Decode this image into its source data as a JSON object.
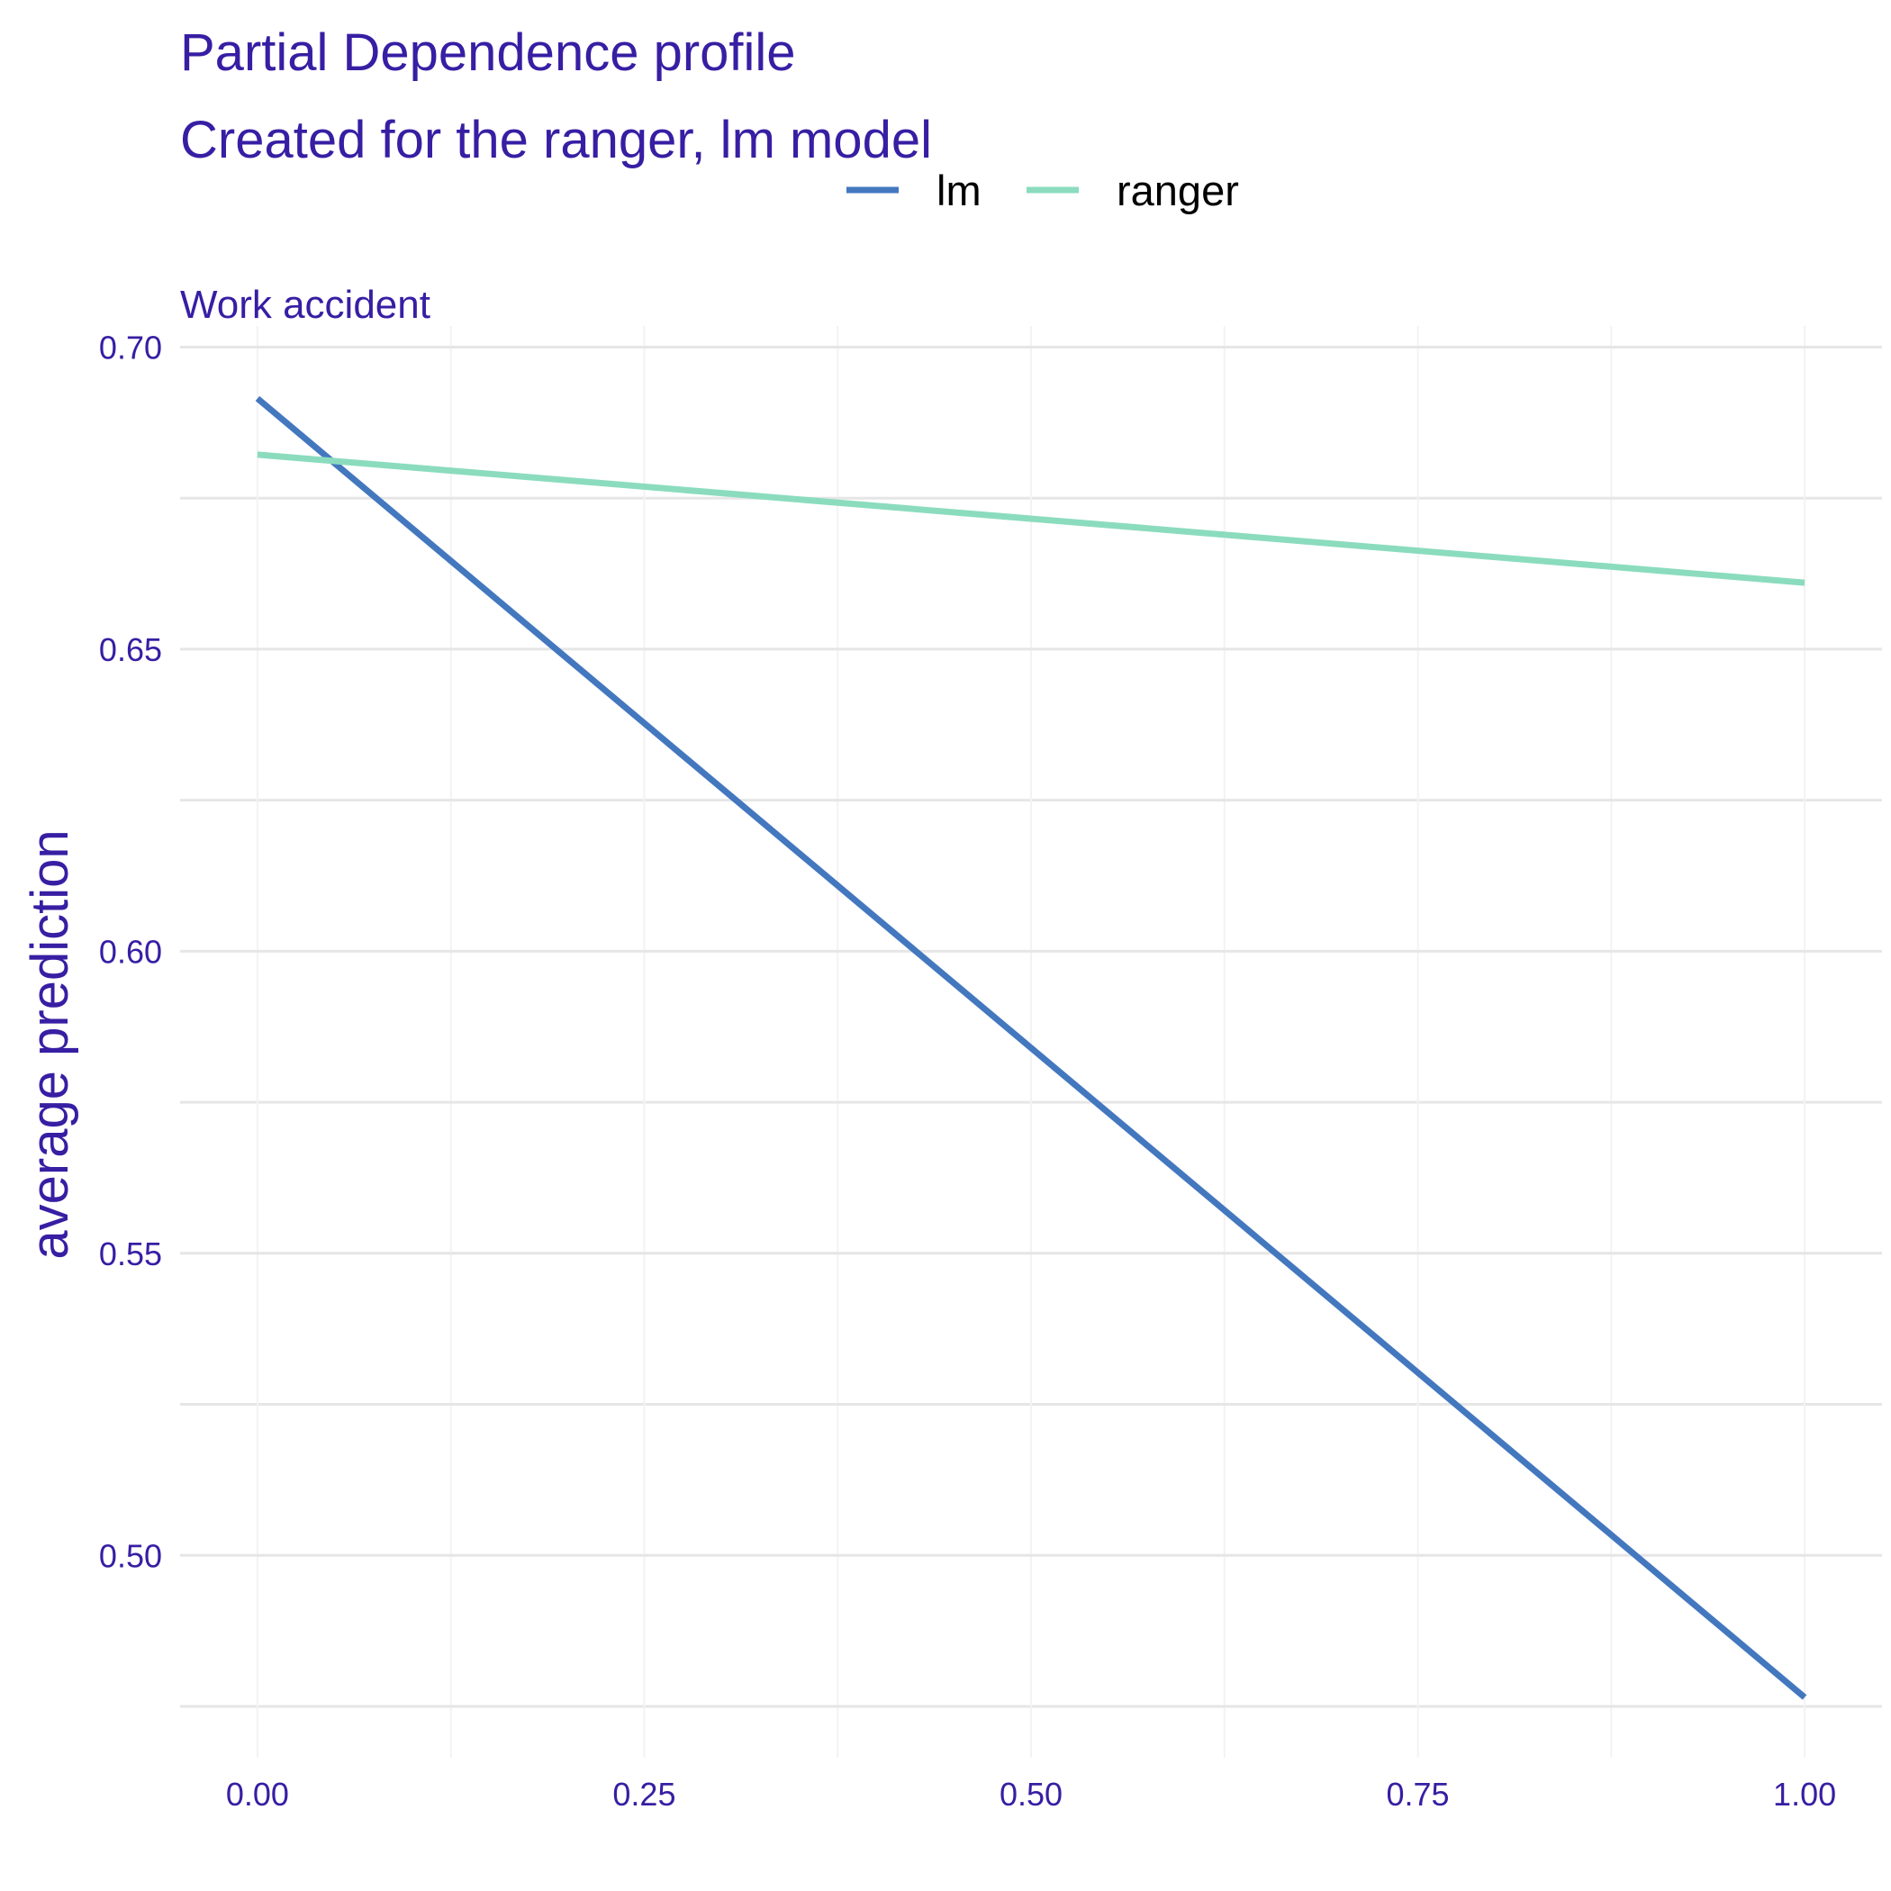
{
  "title": "Partial Dependence profile",
  "subtitle": "Created for the ranger, lm model",
  "colors": {
    "text": "#371ea3",
    "grid_major": "#e6e6e6",
    "grid_minor": "#f3f3f3",
    "lm": "#4378bf",
    "ranger": "#8bdcbe"
  },
  "chart_data": {
    "type": "line",
    "facet_label": "Work  accident",
    "xlabel": "",
    "ylabel": "average prediction",
    "xlim": [
      -0.05,
      1.05
    ],
    "ylim": [
      0.4665,
      0.7035
    ],
    "x_ticks": [
      0,
      0.25,
      0.5,
      0.75,
      1
    ],
    "x_tick_labels": [
      "0.00",
      "0.25",
      "0.50",
      "0.75",
      "1.00"
    ],
    "y_ticks": [
      0.5,
      0.55,
      0.6,
      0.65,
      0.7
    ],
    "y_tick_labels": [
      "0.50",
      "0.55",
      "0.60",
      "0.65",
      "0.70"
    ],
    "legend_position": "top",
    "grid": true,
    "series": [
      {
        "name": "lm",
        "x": [
          0,
          1
        ],
        "y": [
          0.6915,
          0.4765
        ]
      },
      {
        "name": "ranger",
        "x": [
          0,
          1
        ],
        "y": [
          0.6822,
          0.661
        ]
      }
    ]
  }
}
